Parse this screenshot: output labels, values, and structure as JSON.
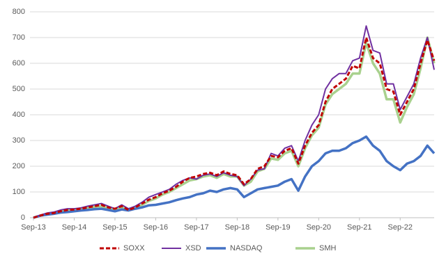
{
  "chart_data": {
    "type": "line",
    "categories": [
      "Sep-13",
      null,
      null,
      null,
      null,
      null,
      "Sep-14",
      null,
      null,
      null,
      null,
      null,
      "Sep-15",
      null,
      null,
      null,
      null,
      null,
      "Sep-16",
      null,
      null,
      null,
      null,
      null,
      "Sep-17",
      null,
      null,
      null,
      null,
      null,
      "Sep-18",
      null,
      null,
      null,
      null,
      null,
      "Sep-19",
      null,
      null,
      null,
      null,
      null,
      "Sep-20",
      null,
      null,
      null,
      null,
      null,
      "Sep-21",
      null,
      null,
      null,
      null,
      null,
      "Sep-22",
      null,
      null,
      null,
      null,
      null
    ],
    "series": [
      {
        "name": "SOXX",
        "color": "#c00000",
        "dashed": true,
        "values": [
          0,
          8,
          15,
          18,
          25,
          30,
          32,
          35,
          40,
          45,
          50,
          40,
          35,
          45,
          30,
          40,
          55,
          70,
          80,
          95,
          105,
          120,
          140,
          155,
          160,
          170,
          175,
          165,
          180,
          170,
          165,
          130,
          150,
          190,
          200,
          240,
          235,
          260,
          270,
          210,
          280,
          330,
          360,
          450,
          500,
          520,
          540,
          590,
          580,
          700,
          620,
          600,
          500,
          490,
          400,
          450,
          500,
          600,
          690,
          610
        ]
      },
      {
        "name": "XSD",
        "color": "#7030a0",
        "values": [
          0,
          10,
          18,
          22,
          30,
          35,
          35,
          38,
          45,
          50,
          55,
          45,
          35,
          50,
          35,
          45,
          60,
          80,
          90,
          100,
          110,
          130,
          145,
          155,
          150,
          165,
          170,
          160,
          175,
          165,
          160,
          125,
          150,
          185,
          190,
          250,
          240,
          270,
          280,
          220,
          300,
          360,
          400,
          500,
          540,
          560,
          560,
          610,
          620,
          745,
          650,
          640,
          520,
          520,
          420,
          470,
          520,
          620,
          700,
          575
        ]
      },
      {
        "name": "NASDAQ",
        "color": "#4472c4",
        "values": [
          0,
          8,
          12,
          15,
          20,
          22,
          25,
          28,
          30,
          33,
          35,
          30,
          25,
          32,
          28,
          35,
          40,
          48,
          50,
          55,
          60,
          68,
          75,
          80,
          90,
          95,
          105,
          100,
          110,
          115,
          110,
          80,
          95,
          110,
          115,
          120,
          125,
          140,
          150,
          105,
          160,
          200,
          220,
          250,
          260,
          260,
          270,
          290,
          300,
          315,
          280,
          260,
          220,
          200,
          185,
          210,
          220,
          240,
          280,
          250
        ]
      },
      {
        "name": "SMH",
        "color": "#a9d18e",
        "values": [
          0,
          8,
          14,
          18,
          24,
          28,
          30,
          33,
          38,
          42,
          45,
          38,
          32,
          42,
          30,
          38,
          50,
          65,
          75,
          90,
          100,
          115,
          130,
          145,
          150,
          160,
          165,
          155,
          170,
          160,
          160,
          125,
          140,
          180,
          190,
          230,
          225,
          250,
          260,
          200,
          270,
          320,
          350,
          440,
          480,
          500,
          520,
          560,
          560,
          680,
          600,
          560,
          460,
          460,
          370,
          430,
          480,
          580,
          700,
          600
        ]
      }
    ],
    "ylim": [
      0,
      800
    ],
    "yticks": [
      0,
      100,
      200,
      300,
      400,
      500,
      600,
      700,
      800
    ],
    "grid": true
  }
}
